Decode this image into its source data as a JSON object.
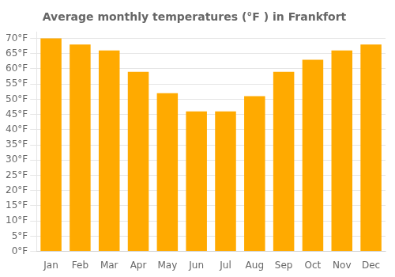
{
  "chart_data": {
    "type": "bar",
    "title": "Average monthly temperatures (°F ) in Frankfort",
    "categories": [
      "Jan",
      "Feb",
      "Mar",
      "Apr",
      "May",
      "Jun",
      "Jul",
      "Aug",
      "Sep",
      "Oct",
      "Nov",
      "Dec"
    ],
    "values": [
      70,
      68,
      66,
      59,
      52,
      46,
      46,
      51,
      59,
      63,
      66,
      68
    ],
    "color": "#FFAA00",
    "ylim": [
      0,
      72
    ],
    "yticks": [
      {
        "value": 0,
        "label": "0°F"
      },
      {
        "value": 5,
        "label": "5°F"
      },
      {
        "value": 10,
        "label": "10°F"
      },
      {
        "value": 15,
        "label": "15°F"
      },
      {
        "value": 20,
        "label": "20°F"
      },
      {
        "value": 25,
        "label": "25°F"
      },
      {
        "value": 30,
        "label": "30°F"
      },
      {
        "value": 35,
        "label": "35°F"
      },
      {
        "value": 40,
        "label": "40°F"
      },
      {
        "value": 45,
        "label": "45°F"
      },
      {
        "value": 50,
        "label": "50°F"
      },
      {
        "value": 55,
        "label": "55°F"
      },
      {
        "value": 60,
        "label": "60°F"
      },
      {
        "value": 65,
        "label": "65°F"
      },
      {
        "value": 70,
        "label": "70°F"
      }
    ],
    "grid": true
  }
}
